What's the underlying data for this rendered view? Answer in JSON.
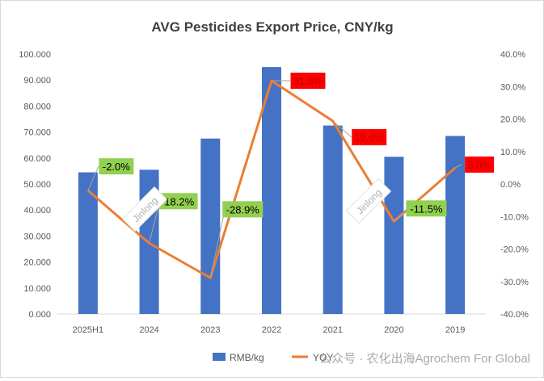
{
  "chart_data": {
    "type": "bar",
    "title": "AVG Pesticides Export Price, CNY/kg",
    "categories": [
      "2025H1",
      "2024",
      "2023",
      "2022",
      "2021",
      "2020",
      "2019"
    ],
    "series": [
      {
        "name": "RMB/kg",
        "type": "bar",
        "axis": "left",
        "color": "#4472C4",
        "values": [
          54.5,
          55.5,
          67.5,
          95.0,
          72.5,
          60.5,
          68.5
        ]
      },
      {
        "name": "YOY",
        "type": "line",
        "axis": "right",
        "color": "#ED7D31",
        "values": [
          -2.0,
          -18.2,
          -28.9,
          31.8,
          19.4,
          -11.5,
          5.0
        ]
      }
    ],
    "data_labels": [
      "-2.0%",
      "-18.2%",
      "-28.9%",
      "31.8%",
      "19.4%",
      "-11.5%",
      "5.0%"
    ],
    "label_colors": {
      "negative": "#92D050",
      "positive": "#FF0000"
    },
    "ylim_left": [
      0,
      100
    ],
    "yticks_left": [
      "0.000",
      "10.000",
      "20.000",
      "30.000",
      "40.000",
      "50.000",
      "60.000",
      "70.000",
      "80.000",
      "90.000",
      "100.000"
    ],
    "ylim_right": [
      -40,
      40
    ],
    "yticks_right": [
      "-40.0%",
      "-30.0%",
      "-20.0%",
      "-10.0%",
      "0.0%",
      "10.0%",
      "20.0%",
      "30.0%",
      "40.0%"
    ],
    "grid": false,
    "legend_position": "bottom"
  },
  "watermark": {
    "text": "Jinlong",
    "footer": "公众号 · 农化出海Agrochem For Global"
  }
}
